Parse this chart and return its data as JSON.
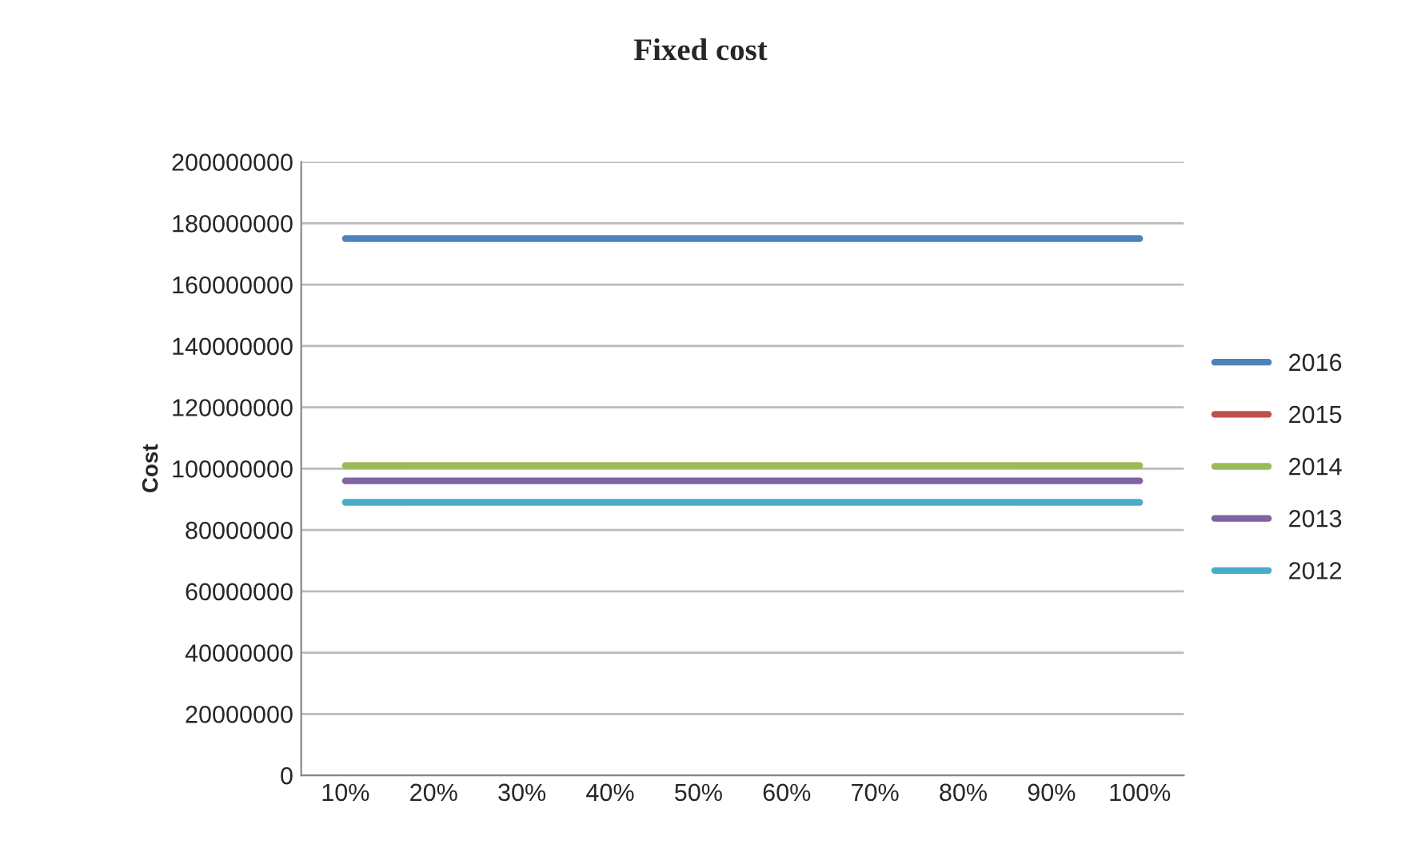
{
  "chart_data": {
    "type": "line",
    "title": "Fixed cost",
    "ylabel": "Cost",
    "categories": [
      "10%",
      "20%",
      "30%",
      "40%",
      "50%",
      "60%",
      "70%",
      "80%",
      "90%",
      "100%"
    ],
    "series": [
      {
        "name": "2016",
        "color": "#4f81bd",
        "values": [
          175000000,
          175000000,
          175000000,
          175000000,
          175000000,
          175000000,
          175000000,
          175000000,
          175000000,
          175000000
        ]
      },
      {
        "name": "2015",
        "color": "#c0504d",
        "values": [
          null,
          null,
          null,
          null,
          null,
          null,
          null,
          null,
          null,
          null
        ]
      },
      {
        "name": "2014",
        "color": "#9bbb59",
        "values": [
          101000000,
          101000000,
          101000000,
          101000000,
          101000000,
          101000000,
          101000000,
          101000000,
          101000000,
          101000000
        ]
      },
      {
        "name": "2013",
        "color": "#8064a2",
        "values": [
          96000000,
          96000000,
          96000000,
          96000000,
          96000000,
          96000000,
          96000000,
          96000000,
          96000000,
          96000000
        ]
      },
      {
        "name": "2012",
        "color": "#4bacc6",
        "values": [
          89000000,
          89000000,
          89000000,
          89000000,
          89000000,
          89000000,
          89000000,
          89000000,
          89000000,
          89000000
        ]
      }
    ],
    "ylim": [
      0,
      200000000
    ],
    "yticks": [
      0,
      20000000,
      40000000,
      60000000,
      80000000,
      100000000,
      120000000,
      140000000,
      160000000,
      180000000,
      200000000
    ],
    "grid": "y",
    "legend": "right",
    "marker": "none",
    "line_style": "solid"
  }
}
